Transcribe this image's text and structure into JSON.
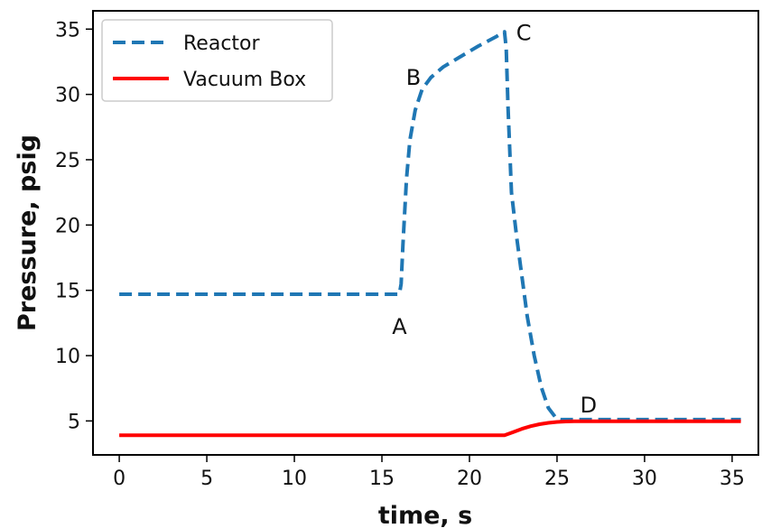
{
  "chart_data": {
    "type": "line",
    "xlabel": "time, s",
    "ylabel": "Pressure, psig",
    "xlim": [
      -1.5,
      36.5
    ],
    "ylim": [
      2.4,
      36.4
    ],
    "xticks": [
      0,
      5,
      10,
      15,
      20,
      25,
      30,
      35
    ],
    "yticks": [
      5,
      10,
      15,
      20,
      25,
      30,
      35
    ],
    "xtick_labels": [
      "0",
      "5",
      "10",
      "15",
      "20",
      "25",
      "30",
      "35"
    ],
    "ytick_labels": [
      "5",
      "10",
      "15",
      "20",
      "25",
      "30",
      "35"
    ],
    "grid": false,
    "legend_position": "top-left",
    "series": [
      {
        "name": "Reactor",
        "color": "#1f77b4",
        "style": "dashed",
        "x": [
          0,
          16.0,
          16.1,
          16.2,
          16.4,
          16.6,
          16.9,
          17.3,
          17.8,
          18.5,
          19.5,
          20.5,
          21.5,
          22.0,
          22.1,
          22.2,
          22.4,
          22.7,
          23.0,
          23.3,
          23.7,
          24.1,
          24.5,
          24.9,
          25.2,
          26.0,
          30.0,
          35.5
        ],
        "y": [
          14.7,
          14.7,
          15.5,
          18.5,
          23.5,
          26.5,
          28.8,
          30.4,
          31.3,
          32.1,
          32.9,
          33.7,
          34.4,
          34.8,
          33.5,
          29.0,
          22.5,
          19.0,
          16.0,
          13.0,
          10.0,
          7.6,
          6.0,
          5.3,
          5.1,
          5.1,
          5.1,
          5.1
        ]
      },
      {
        "name": "Vacuum Box",
        "color": "#ff0000",
        "style": "solid",
        "x": [
          0,
          22.0,
          22.5,
          23.0,
          23.5,
          24.0,
          24.5,
          25.0,
          25.5,
          26.0,
          30.0,
          35.5
        ],
        "y": [
          3.9,
          3.9,
          4.15,
          4.4,
          4.6,
          4.75,
          4.85,
          4.92,
          4.96,
          4.98,
          4.98,
          4.98
        ]
      }
    ],
    "annotations": [
      {
        "label": "A",
        "x": 16.0,
        "y": 12.2
      },
      {
        "label": "B",
        "x": 16.8,
        "y": 31.3
      },
      {
        "label": "C",
        "x": 23.1,
        "y": 34.7
      },
      {
        "label": "D",
        "x": 26.8,
        "y": 6.2
      }
    ]
  }
}
